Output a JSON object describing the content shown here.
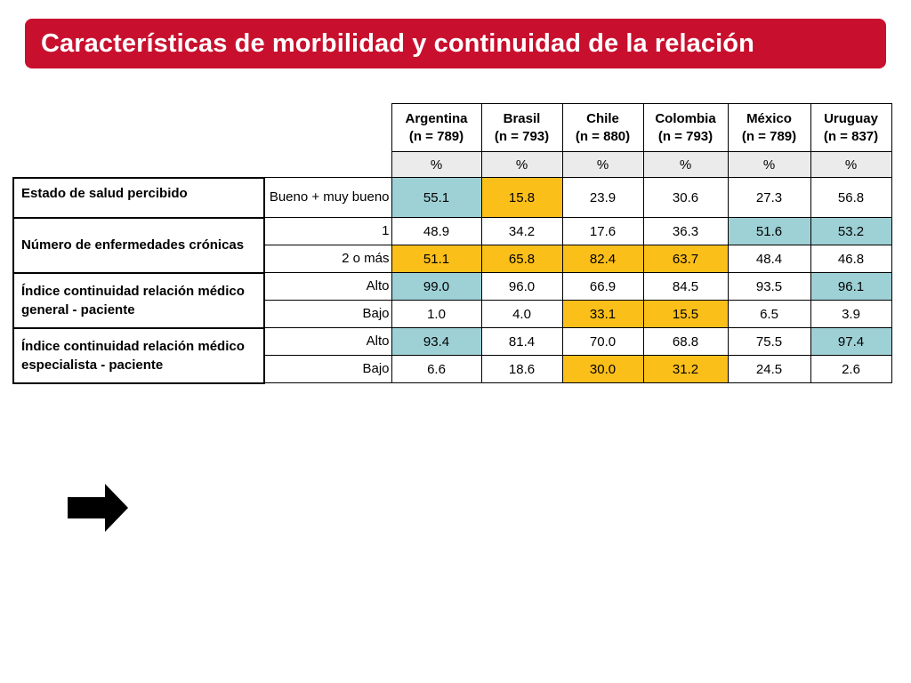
{
  "title": "Características de morbilidad y continuidad de la relación",
  "colors": {
    "title_bar": "#c8102e",
    "highlight_teal": "#9ed1d6",
    "highlight_amber": "#fbbf1a",
    "pct_row": "#ebebeb"
  },
  "columns": [
    {
      "name": "Argentina",
      "n": "(n = 789)",
      "unit": "%"
    },
    {
      "name": "Brasil",
      "n": "(n = 793)",
      "unit": "%"
    },
    {
      "name": "Chile",
      "n": "(n = 880)",
      "unit": "%"
    },
    {
      "name": "Colombia",
      "n": "(n = 793)",
      "unit": "%"
    },
    {
      "name": "México",
      "n": "(n = 789)",
      "unit": "%"
    },
    {
      "name": "Uruguay",
      "n": "(n = 837)",
      "unit": "%"
    }
  ],
  "groups": [
    {
      "label": "Estado de salud percibido",
      "rows": [
        {
          "label": "Bueno + muy bueno",
          "values": [
            "55.1",
            "15.8",
            "23.9",
            "30.6",
            "27.3",
            "56.8"
          ],
          "highlight": [
            "teal",
            "amber",
            "none",
            "none",
            "none",
            "none"
          ]
        }
      ]
    },
    {
      "label": "Número de enfermedades crónicas",
      "rows": [
        {
          "label": "1",
          "values": [
            "48.9",
            "34.2",
            "17.6",
            "36.3",
            "51.6",
            "53.2"
          ],
          "highlight": [
            "none",
            "none",
            "none",
            "none",
            "teal",
            "teal"
          ]
        },
        {
          "label": "2 o más",
          "values": [
            "51.1",
            "65.8",
            "82.4",
            "63.7",
            "48.4",
            "46.8"
          ],
          "highlight": [
            "amber",
            "amber",
            "amber",
            "amber",
            "none",
            "none"
          ]
        }
      ]
    },
    {
      "label": "Índice continuidad relación médico general - paciente",
      "rows": [
        {
          "label": "Alto",
          "values": [
            "99.0",
            "96.0",
            "66.9",
            "84.5",
            "93.5",
            "96.1"
          ],
          "highlight": [
            "teal",
            "none",
            "none",
            "none",
            "none",
            "teal"
          ]
        },
        {
          "label": "Bajo",
          "values": [
            "1.0",
            "4.0",
            "33.1",
            "15.5",
            "6.5",
            "3.9"
          ],
          "highlight": [
            "none",
            "none",
            "amber",
            "amber",
            "none",
            "none"
          ]
        }
      ]
    },
    {
      "label": "Índice continuidad relación médico especialista - paciente",
      "rows": [
        {
          "label": "Alto",
          "values": [
            "93.4",
            "81.4",
            "70.0",
            "68.8",
            "75.5",
            "97.4"
          ],
          "highlight": [
            "teal",
            "none",
            "none",
            "none",
            "none",
            "teal"
          ]
        },
        {
          "label": "Bajo",
          "values": [
            "6.6",
            "18.6",
            "30.0",
            "31.2",
            "24.5",
            "2.6"
          ],
          "highlight": [
            "none",
            "none",
            "amber",
            "amber",
            "none",
            "none"
          ]
        }
      ]
    }
  ],
  "arrow_icon": "right-arrow-icon"
}
